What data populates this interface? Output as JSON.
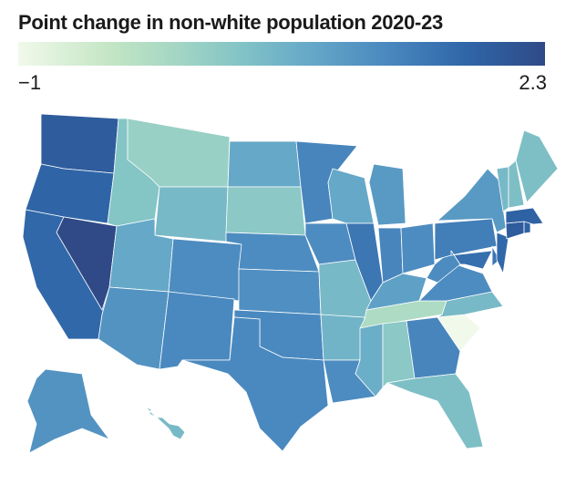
{
  "title": "Point change in non-white population 2020-23",
  "legend": {
    "min_label": "−1",
    "max_label": "2.3",
    "min": -1,
    "max": 2.3,
    "colors": [
      "#f1f9ea",
      "#c2e5c4",
      "#a4d6c4",
      "#83c4c6",
      "#66a9c8",
      "#4a88bf",
      "#2f66a8",
      "#2f4a86"
    ]
  },
  "states": [
    {
      "code": "WA",
      "value": 2.0
    },
    {
      "code": "OR",
      "value": 1.85
    },
    {
      "code": "CA",
      "value": 1.8
    },
    {
      "code": "NV",
      "value": 2.3
    },
    {
      "code": "ID",
      "value": 0.4
    },
    {
      "code": "MT",
      "value": 0.1
    },
    {
      "code": "WY",
      "value": 0.6
    },
    {
      "code": "UT",
      "value": 0.9
    },
    {
      "code": "AZ",
      "value": 1.2
    },
    {
      "code": "CO",
      "value": 1.3
    },
    {
      "code": "NM",
      "value": 1.35
    },
    {
      "code": "ND",
      "value": 0.9
    },
    {
      "code": "SD",
      "value": 0.3
    },
    {
      "code": "NE",
      "value": 1.3
    },
    {
      "code": "KS",
      "value": 1.25
    },
    {
      "code": "OK",
      "value": 1.35
    },
    {
      "code": "TX",
      "value": 1.35
    },
    {
      "code": "MN",
      "value": 1.4
    },
    {
      "code": "IA",
      "value": 1.3
    },
    {
      "code": "MO",
      "value": 0.6
    },
    {
      "code": "AR",
      "value": 0.7
    },
    {
      "code": "LA",
      "value": 1.3
    },
    {
      "code": "WI",
      "value": 0.9
    },
    {
      "code": "IL",
      "value": 1.6
    },
    {
      "code": "MI",
      "value": 1.1
    },
    {
      "code": "IN",
      "value": 1.4
    },
    {
      "code": "OH",
      "value": 1.3
    },
    {
      "code": "KY",
      "value": 1.0
    },
    {
      "code": "TN",
      "value": -0.2
    },
    {
      "code": "MS",
      "value": 0.8
    },
    {
      "code": "AL",
      "value": 0.3
    },
    {
      "code": "GA",
      "value": 1.4
    },
    {
      "code": "FL",
      "value": 0.5
    },
    {
      "code": "SC",
      "value": -1.0
    },
    {
      "code": "NC",
      "value": 0.6
    },
    {
      "code": "VA",
      "value": 1.3
    },
    {
      "code": "WV",
      "value": 1.3
    },
    {
      "code": "PA",
      "value": 1.5
    },
    {
      "code": "NY",
      "value": 1.1
    },
    {
      "code": "MD",
      "value": 1.7
    },
    {
      "code": "DE",
      "value": 1.6
    },
    {
      "code": "NJ",
      "value": 1.8
    },
    {
      "code": "CT",
      "value": 2.0
    },
    {
      "code": "RI",
      "value": 1.9
    },
    {
      "code": "MA",
      "value": 1.9
    },
    {
      "code": "VT",
      "value": 0.6
    },
    {
      "code": "NH",
      "value": 0.5
    },
    {
      "code": "ME",
      "value": 0.5
    },
    {
      "code": "AK",
      "value": 1.2
    },
    {
      "code": "HI",
      "value": 0.6
    }
  ]
}
